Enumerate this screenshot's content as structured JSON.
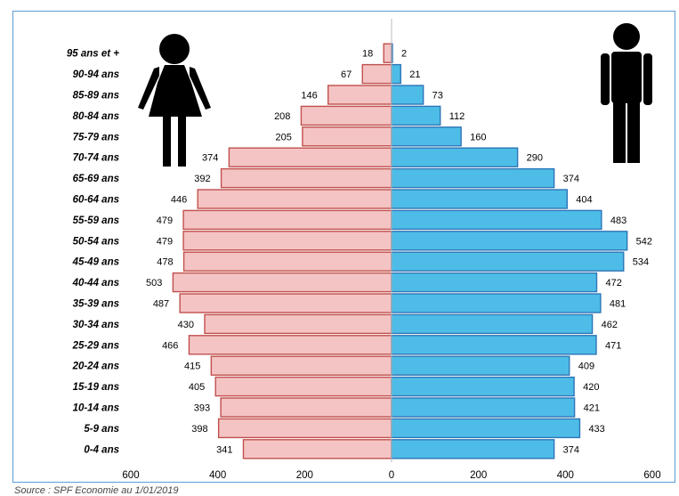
{
  "chart_data": {
    "type": "bar",
    "orientation": "horizontal",
    "layout": "population-pyramid",
    "categories": [
      "0-4 ans",
      "5-9 ans",
      "10-14 ans",
      "15-19 ans",
      "20-24 ans",
      "25-29 ans",
      "30-34 ans",
      "35-39 ans",
      "40-44 ans",
      "45-49 ans",
      "50-54 ans",
      "55-59 ans",
      "60-64 ans",
      "65-69 ans",
      "70-74 ans",
      "75-79 ans",
      "80-84 ans",
      "85-89 ans",
      "90-94 ans",
      "95 ans et +"
    ],
    "series": [
      {
        "values": [
          341,
          398,
          393,
          405,
          415,
          466,
          430,
          487,
          503,
          478,
          479,
          479,
          446,
          392,
          374,
          205,
          208,
          146,
          67,
          18
        ],
        "color": "#f4c4c4",
        "stroke": "#c0504d",
        "side": "left",
        "icon": "female-silhouette-icon"
      },
      {
        "values": [
          374,
          433,
          421,
          420,
          409,
          471,
          462,
          481,
          472,
          534,
          542,
          483,
          404,
          374,
          290,
          160,
          112,
          73,
          21,
          2
        ],
        "color": "#4dbde8",
        "stroke": "#2e75b6",
        "side": "right",
        "icon": "male-silhouette-icon"
      }
    ],
    "xlim": [
      -600,
      600
    ],
    "xticks": [
      "600",
      "400",
      "200",
      "0",
      "200",
      "400",
      "600"
    ],
    "grid": false,
    "legend": "none"
  },
  "source": "Source : SPF Economie au 1/01/2019"
}
